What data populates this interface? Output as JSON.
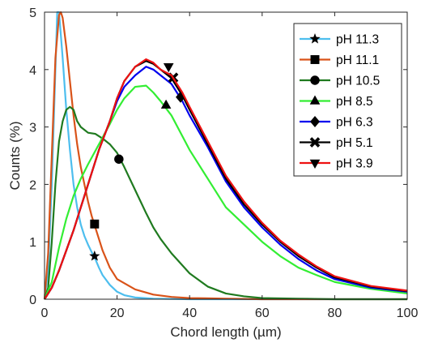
{
  "chart_data": {
    "type": "line",
    "xlabel": "Chord length (µm)",
    "ylabel": "Counts (%)",
    "xlim": [
      0,
      100
    ],
    "ylim": [
      0,
      5
    ],
    "xticks": [
      "0",
      "20",
      "40",
      "60",
      "80",
      "100"
    ],
    "yticks": [
      "0",
      "1",
      "2",
      "3",
      "4",
      "5"
    ],
    "grid": false,
    "legend_position": "top-right",
    "series": [
      {
        "name": "pH 11.3",
        "color": "#4DBEEE",
        "marker": "star",
        "marker_point": [
          13.8,
          0.75
        ],
        "x": [
          0,
          1,
          2,
          3,
          3.5,
          4,
          5,
          6,
          7,
          8,
          9,
          10,
          11,
          12,
          13,
          14,
          15,
          16,
          18,
          20,
          22,
          25,
          30,
          40,
          60,
          100
        ],
        "y": [
          0,
          0.5,
          2.0,
          4.0,
          5.0,
          5.0,
          4.2,
          3.3,
          2.6,
          2.0,
          1.6,
          1.3,
          1.1,
          0.95,
          0.82,
          0.7,
          0.55,
          0.42,
          0.25,
          0.13,
          0.07,
          0.03,
          0.01,
          0.0,
          0.0,
          0.0
        ]
      },
      {
        "name": "pH 11.1",
        "color": "#D95319",
        "marker": "square",
        "marker_point": [
          13.8,
          1.31
        ],
        "x": [
          0,
          1,
          2,
          3,
          4,
          4.5,
          5,
          6,
          7,
          8,
          9,
          10,
          11,
          12,
          13,
          14,
          15,
          16,
          18,
          20,
          25,
          30,
          35,
          40,
          50,
          60,
          100
        ],
        "y": [
          0,
          0.8,
          2.5,
          4.2,
          4.95,
          5.0,
          4.9,
          4.4,
          3.8,
          3.2,
          2.7,
          2.3,
          2.0,
          1.7,
          1.45,
          1.25,
          1.05,
          0.85,
          0.55,
          0.35,
          0.17,
          0.08,
          0.04,
          0.02,
          0.01,
          0.0,
          0.0
        ]
      },
      {
        "name": "pH 10.5",
        "color": "#1F7A1F",
        "marker": "circle",
        "marker_point": [
          20.5,
          2.44
        ],
        "x": [
          0,
          1,
          2,
          3,
          4,
          5,
          6,
          7,
          8,
          9,
          10,
          11,
          12,
          14,
          16,
          18,
          20,
          22,
          25,
          28,
          30,
          32,
          35,
          40,
          45,
          50,
          55,
          60,
          70,
          80,
          100
        ],
        "y": [
          0,
          0.2,
          1.0,
          2.0,
          2.75,
          3.1,
          3.3,
          3.35,
          3.3,
          3.1,
          3.0,
          2.95,
          2.9,
          2.88,
          2.8,
          2.7,
          2.55,
          2.3,
          1.9,
          1.5,
          1.25,
          1.05,
          0.8,
          0.45,
          0.22,
          0.1,
          0.05,
          0.02,
          0.01,
          0.0,
          0.0
        ]
      },
      {
        "name": "pH 8.5",
        "color": "#33EE33",
        "marker": "triangle",
        "marker_point": [
          33.5,
          3.38
        ],
        "x": [
          0,
          2,
          4,
          6,
          8,
          10,
          12,
          15,
          18,
          20,
          22,
          25,
          28,
          30,
          32,
          35,
          40,
          45,
          50,
          55,
          60,
          65,
          70,
          75,
          80,
          90,
          100
        ],
        "y": [
          0,
          0.3,
          0.9,
          1.4,
          1.8,
          2.1,
          2.35,
          2.7,
          3.05,
          3.3,
          3.5,
          3.7,
          3.72,
          3.6,
          3.45,
          3.2,
          2.6,
          2.1,
          1.6,
          1.3,
          1.0,
          0.75,
          0.55,
          0.42,
          0.3,
          0.18,
          0.1
        ]
      },
      {
        "name": "pH 6.3",
        "color": "#0000EE",
        "marker": "diamond",
        "marker_point": [
          37.5,
          3.52
        ],
        "x": [
          0,
          2,
          4,
          6,
          8,
          10,
          12,
          15,
          18,
          20,
          22,
          25,
          28,
          30,
          32,
          35,
          38,
          40,
          45,
          50,
          55,
          60,
          65,
          70,
          75,
          80,
          90,
          100
        ],
        "y": [
          0,
          0.2,
          0.5,
          0.85,
          1.2,
          1.6,
          2.0,
          2.6,
          3.1,
          3.45,
          3.7,
          3.9,
          4.05,
          4.0,
          3.9,
          3.75,
          3.45,
          3.2,
          2.65,
          2.05,
          1.6,
          1.25,
          0.95,
          0.7,
          0.5,
          0.35,
          0.2,
          0.13
        ]
      },
      {
        "name": "pH 5.1",
        "color": "#000000",
        "marker": "x",
        "marker_point": [
          35.5,
          3.86
        ],
        "x": [
          0,
          2,
          4,
          6,
          8,
          10,
          12,
          15,
          18,
          20,
          22,
          25,
          28,
          30,
          32,
          35,
          38,
          40,
          45,
          50,
          55,
          60,
          65,
          70,
          75,
          80,
          90,
          100
        ],
        "y": [
          0,
          0.2,
          0.5,
          0.85,
          1.2,
          1.6,
          2.0,
          2.6,
          3.1,
          3.5,
          3.8,
          4.05,
          4.15,
          4.1,
          4.0,
          3.85,
          3.55,
          3.3,
          2.7,
          2.1,
          1.65,
          1.3,
          1.0,
          0.75,
          0.55,
          0.38,
          0.22,
          0.14
        ]
      },
      {
        "name": "pH 3.9",
        "color": "#EE1111",
        "marker": "triangle-down",
        "marker_point": [
          34.2,
          4.05
        ],
        "x": [
          0,
          2,
          4,
          6,
          8,
          10,
          12,
          15,
          18,
          20,
          22,
          25,
          28,
          30,
          32,
          35,
          38,
          40,
          45,
          50,
          55,
          60,
          65,
          70,
          75,
          80,
          90,
          100
        ],
        "y": [
          0,
          0.2,
          0.5,
          0.85,
          1.2,
          1.6,
          2.0,
          2.6,
          3.1,
          3.5,
          3.8,
          4.05,
          4.18,
          4.12,
          4.0,
          3.9,
          3.6,
          3.35,
          2.75,
          2.15,
          1.7,
          1.33,
          1.02,
          0.78,
          0.57,
          0.4,
          0.23,
          0.15
        ]
      }
    ]
  }
}
